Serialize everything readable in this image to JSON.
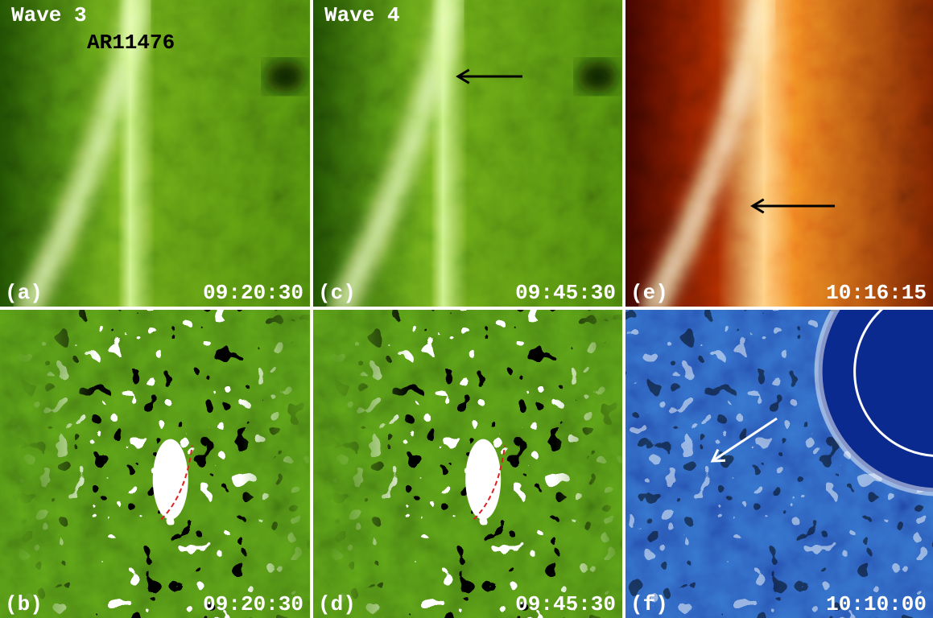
{
  "panels": [
    {
      "label": "(a)",
      "time": "09:20:30",
      "title": "Wave 3",
      "annotation": "AR11476"
    },
    {
      "label": "(c)",
      "time": "09:45:30",
      "title": "Wave 4"
    },
    {
      "label": "(e)",
      "time": "10:16:15"
    },
    {
      "label": "(b)",
      "time": "09:20:30"
    },
    {
      "label": "(d)",
      "time": "09:45:30"
    },
    {
      "label": "(f)",
      "time": "10:10:00"
    }
  ]
}
